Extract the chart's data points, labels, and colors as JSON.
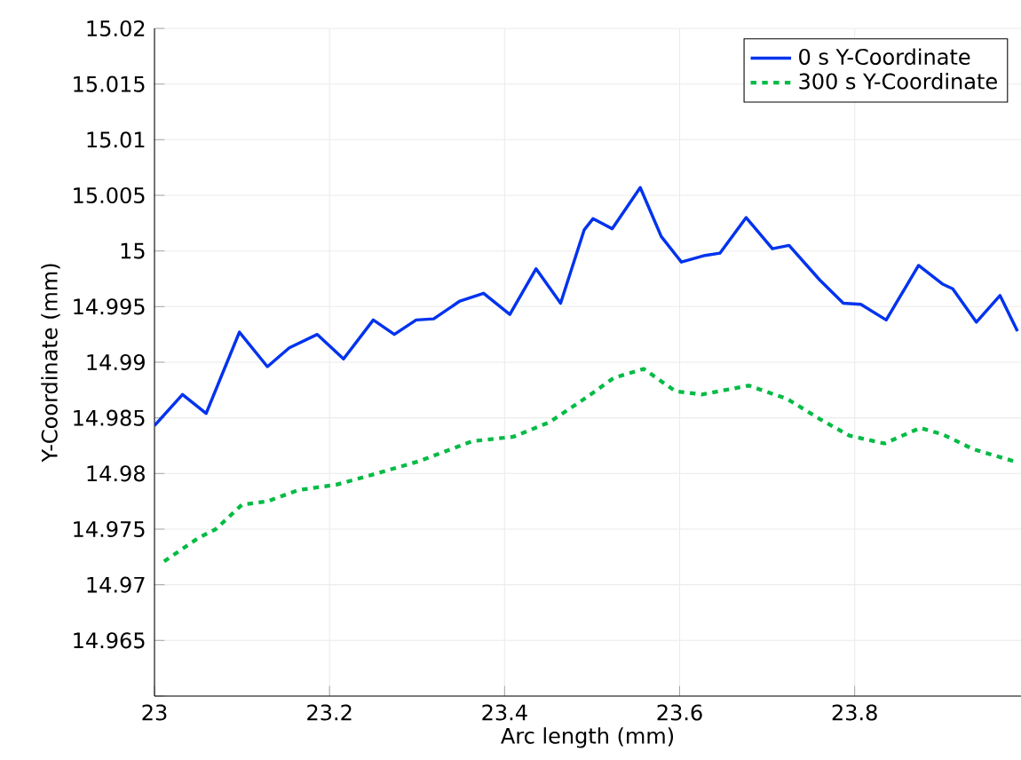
{
  "chart_data": {
    "type": "line",
    "xlabel": "Arc length (mm)",
    "ylabel": "Y-Coordinate (mm)",
    "xlim": [
      23,
      23.99
    ],
    "ylim": [
      14.96,
      15.02
    ],
    "xticks": [
      23,
      23.2,
      23.4,
      23.6,
      23.8
    ],
    "yticks": [
      {
        "value": 14.96,
        "label": null
      },
      14.965,
      14.97,
      14.975,
      14.98,
      14.985,
      14.99,
      14.995,
      15,
      15.005,
      15.01,
      15.015,
      15.02
    ],
    "grid": true,
    "legend": "top right",
    "marker": "none",
    "series": [
      {
        "name": "0 s Y-Coordinate",
        "color": "#0033ee",
        "line_style": "solid",
        "x": [
          23.0,
          23.032,
          23.059,
          23.097,
          23.129,
          23.154,
          23.186,
          23.216,
          23.25,
          23.274,
          23.299,
          23.319,
          23.349,
          23.376,
          23.406,
          23.436,
          23.464,
          23.491,
          23.501,
          23.523,
          23.555,
          23.579,
          23.602,
          23.629,
          23.646,
          23.676,
          23.706,
          23.725,
          23.76,
          23.787,
          23.807,
          23.836,
          23.873,
          23.901,
          23.912,
          23.939,
          23.966,
          23.986
        ],
        "values": [
          14.9843,
          14.9871,
          14.9854,
          14.9927,
          14.9896,
          14.9913,
          14.9925,
          14.9903,
          14.9938,
          14.9925,
          14.9938,
          14.9939,
          14.9955,
          14.9962,
          14.9943,
          14.9984,
          14.9953,
          15.0019,
          15.0029,
          15.002,
          15.0057,
          15.0013,
          14.999,
          14.9996,
          14.9998,
          15.003,
          15.0002,
          15.0005,
          14.9974,
          14.9953,
          14.9952,
          14.9938,
          14.9987,
          14.997,
          14.9966,
          14.9936,
          14.996,
          14.9928
        ]
      },
      {
        "name": "300 s Y-Coordinate",
        "color": "#00bb44",
        "line_style": "dotted",
        "x": [
          23.011,
          23.05,
          23.07,
          23.1,
          23.129,
          23.164,
          23.208,
          23.245,
          23.302,
          23.363,
          23.41,
          23.451,
          23.491,
          23.525,
          23.559,
          23.595,
          23.625,
          23.679,
          23.723,
          23.76,
          23.794,
          23.834,
          23.875,
          23.901,
          23.935,
          23.982
        ],
        "values": [
          14.9721,
          14.9742,
          14.975,
          14.9772,
          14.9775,
          14.9785,
          14.979,
          14.9798,
          14.9811,
          14.9829,
          14.9833,
          14.9846,
          14.9867,
          14.9886,
          14.9894,
          14.9874,
          14.9871,
          14.9879,
          14.9867,
          14.9849,
          14.9834,
          14.9827,
          14.9841,
          14.9835,
          14.9822,
          14.9811
        ]
      }
    ]
  }
}
